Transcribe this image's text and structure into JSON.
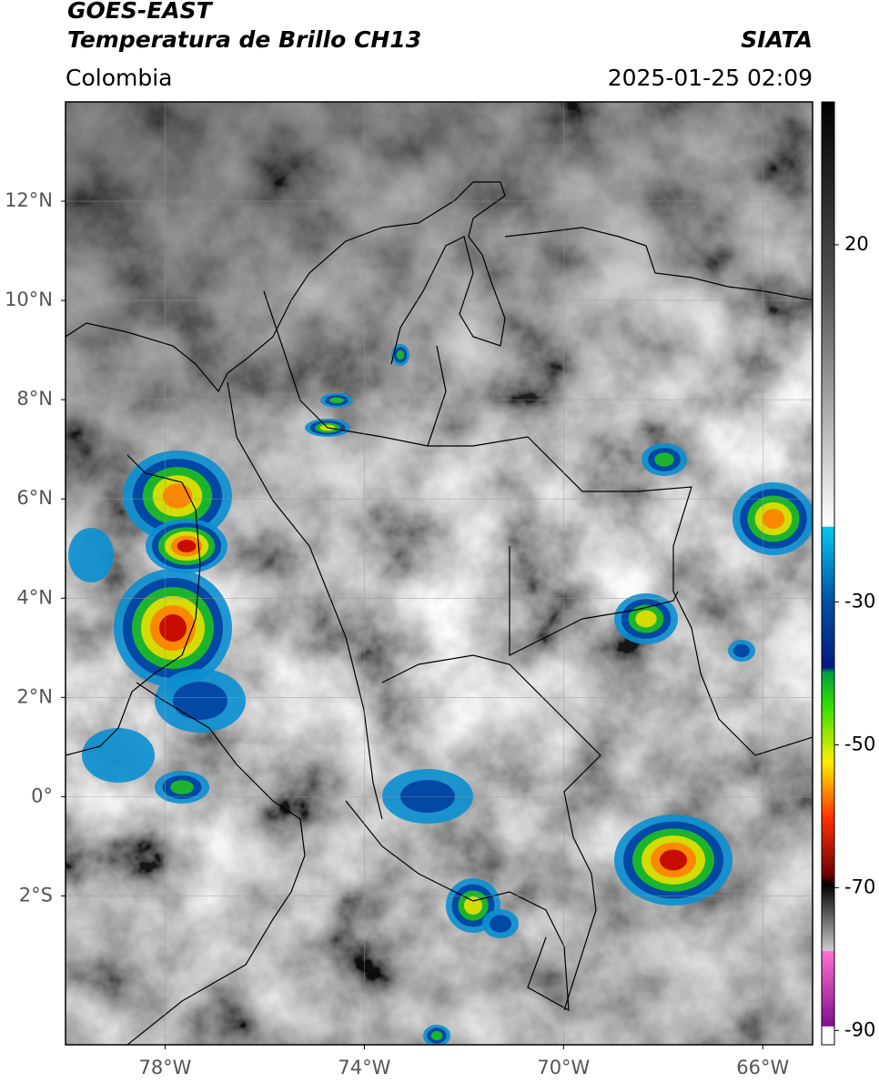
{
  "header": {
    "satellite": "GOES-EAST",
    "product": "Temperatura de Brillo CH13",
    "source": "SIATA",
    "region": "Colombia",
    "datetime": "2025-01-25 02:09"
  },
  "map": {
    "lon_range": [
      -80,
      -65
    ],
    "lat_range": [
      -5,
      14
    ],
    "lon_ticks": [
      {
        "value": -78,
        "label": "78°W"
      },
      {
        "value": -74,
        "label": "74°W"
      },
      {
        "value": -70,
        "label": "70°W"
      },
      {
        "value": -66,
        "label": "66°W"
      }
    ],
    "lat_ticks": [
      {
        "value": 12,
        "label": "12°N"
      },
      {
        "value": 10,
        "label": "10°N"
      },
      {
        "value": 8,
        "label": "8°N"
      },
      {
        "value": 6,
        "label": "6°N"
      },
      {
        "value": 4,
        "label": "4°N"
      },
      {
        "value": 2,
        "label": "2°N"
      },
      {
        "value": 0,
        "label": "0°"
      },
      {
        "value": -2,
        "label": "2°S"
      }
    ]
  },
  "colorbar": {
    "range": [
      -92,
      40
    ],
    "ticks": [
      20,
      -30,
      -50,
      -70,
      -90
    ]
  }
}
